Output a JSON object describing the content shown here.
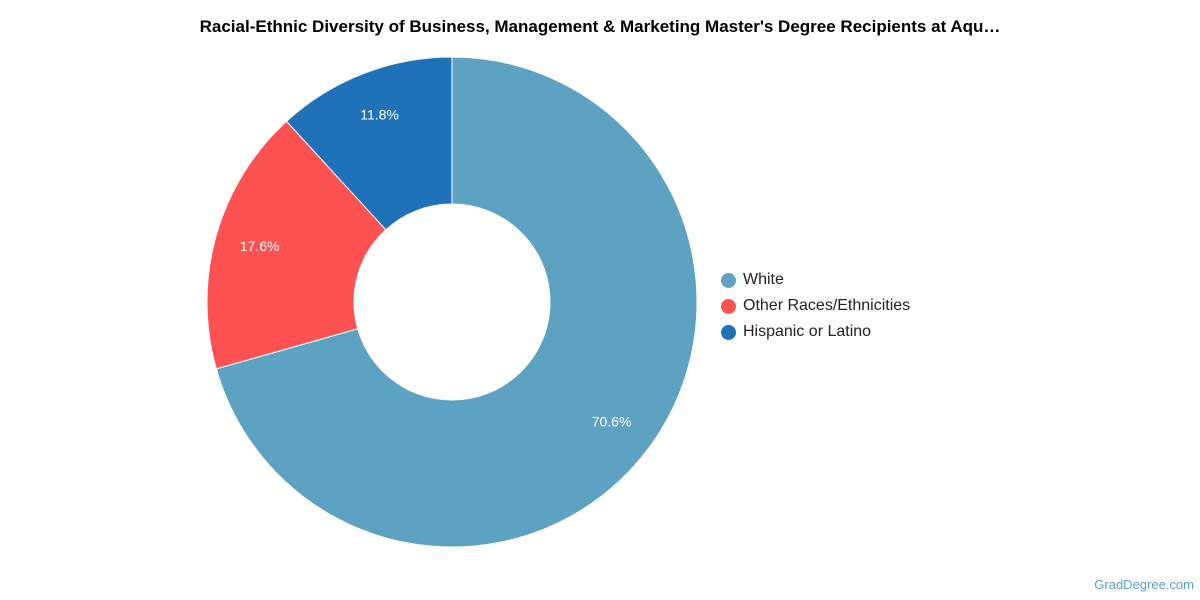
{
  "chart_data": {
    "type": "pie",
    "title": "Racial-Ethnic Diversity of Business, Management & Marketing Master's Degree Recipients at Aqu…",
    "donut": true,
    "slices": [
      {
        "label": "White",
        "value": 70.6,
        "display": "70.6%",
        "color": "#5da2c0"
      },
      {
        "label": "Other Races/Ethnicities",
        "value": 17.6,
        "display": "17.6%",
        "color": "#fe5151"
      },
      {
        "label": "Hispanic or Latino",
        "value": 11.8,
        "display": "11.8%",
        "color": "#1f72b8"
      }
    ],
    "legend_position": "right"
  },
  "watermark": "GradDegree.com"
}
